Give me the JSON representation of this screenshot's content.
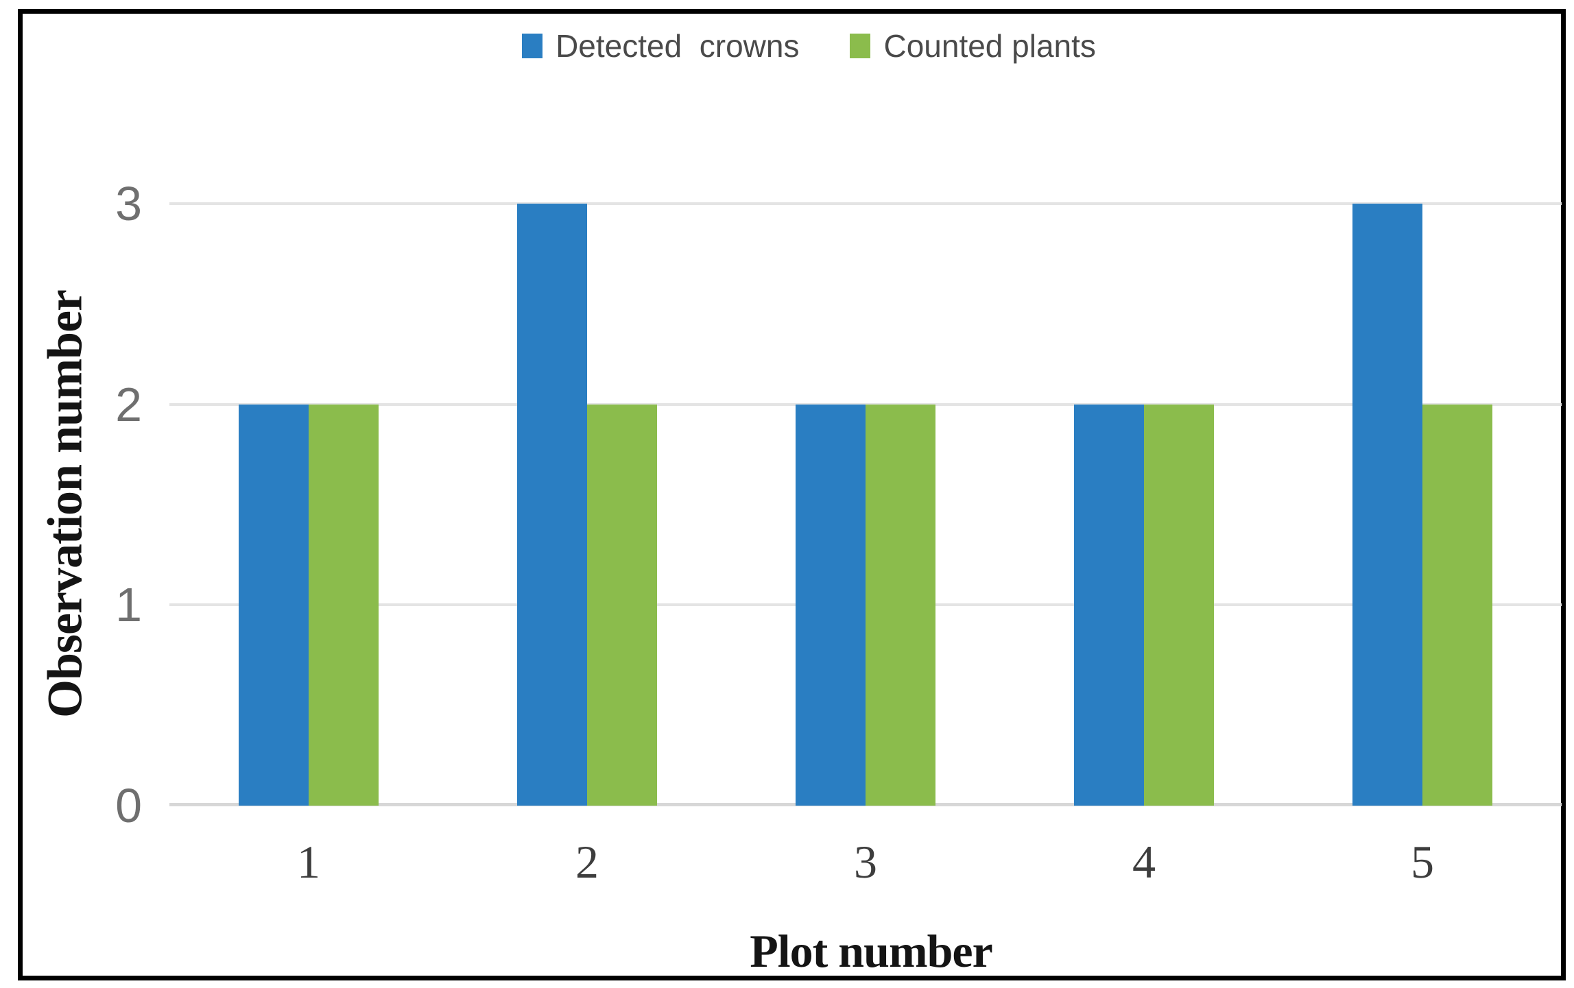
{
  "chart_data": {
    "type": "bar",
    "title": "",
    "categories": [
      "1",
      "2",
      "3",
      "4",
      "5"
    ],
    "series": [
      {
        "name": "Detected crowns",
        "color": "#2A7EC2",
        "values": [
          2,
          3,
          2,
          2,
          3
        ]
      },
      {
        "name": "Counted plants",
        "color": "#8BBC4C",
        "values": [
          2,
          2,
          2,
          2,
          2
        ]
      }
    ],
    "xlabel": "Plot number",
    "ylabel": "Observation number",
    "ylim": [
      0,
      3
    ],
    "yticks": [
      0,
      1,
      2,
      3
    ],
    "grid": true,
    "legend_position": "top"
  },
  "legend": {
    "items": [
      {
        "label": "Detected  crowns",
        "color": "#2A7EC2"
      },
      {
        "label": "Counted plants",
        "color": "#8BBC4C"
      }
    ]
  },
  "styles": {
    "background": "#FFFFFF",
    "frame_color": "#000000",
    "grid_color": "#E4E4E4",
    "baseline_color": "#D7D7D7",
    "ytick_color": "#6F6F6F",
    "xtick_color": "#3D3D3D",
    "legend_text_color": "#4A4A4A",
    "title_color": "#141414"
  }
}
